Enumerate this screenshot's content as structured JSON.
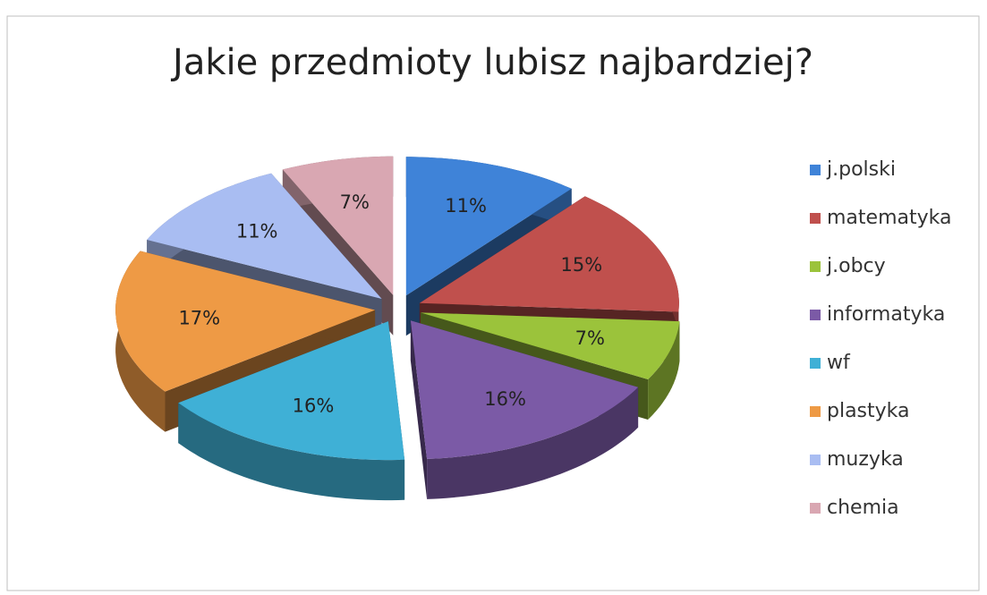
{
  "chart_data": {
    "type": "pie3d",
    "title": "Jakie przedmioty lubisz najbardziej?",
    "categories": [
      "j.polski",
      "matematyka",
      "j.obcy",
      "informatyka",
      "wf",
      "plastyka",
      "muzyka",
      "chemia"
    ],
    "values": [
      11,
      15,
      7,
      16,
      16,
      17,
      11,
      7
    ],
    "value_labels": [
      "11%",
      "15%",
      "7%",
      "16%",
      "16%",
      "17%",
      "11%",
      "7%"
    ],
    "colors": [
      "#3f83d8",
      "#c0504d",
      "#9bc33b",
      "#7b5aa6",
      "#3fb0d6",
      "#ee9a45",
      "#a9bdf2",
      "#d9a7b2"
    ],
    "legend": "right"
  }
}
